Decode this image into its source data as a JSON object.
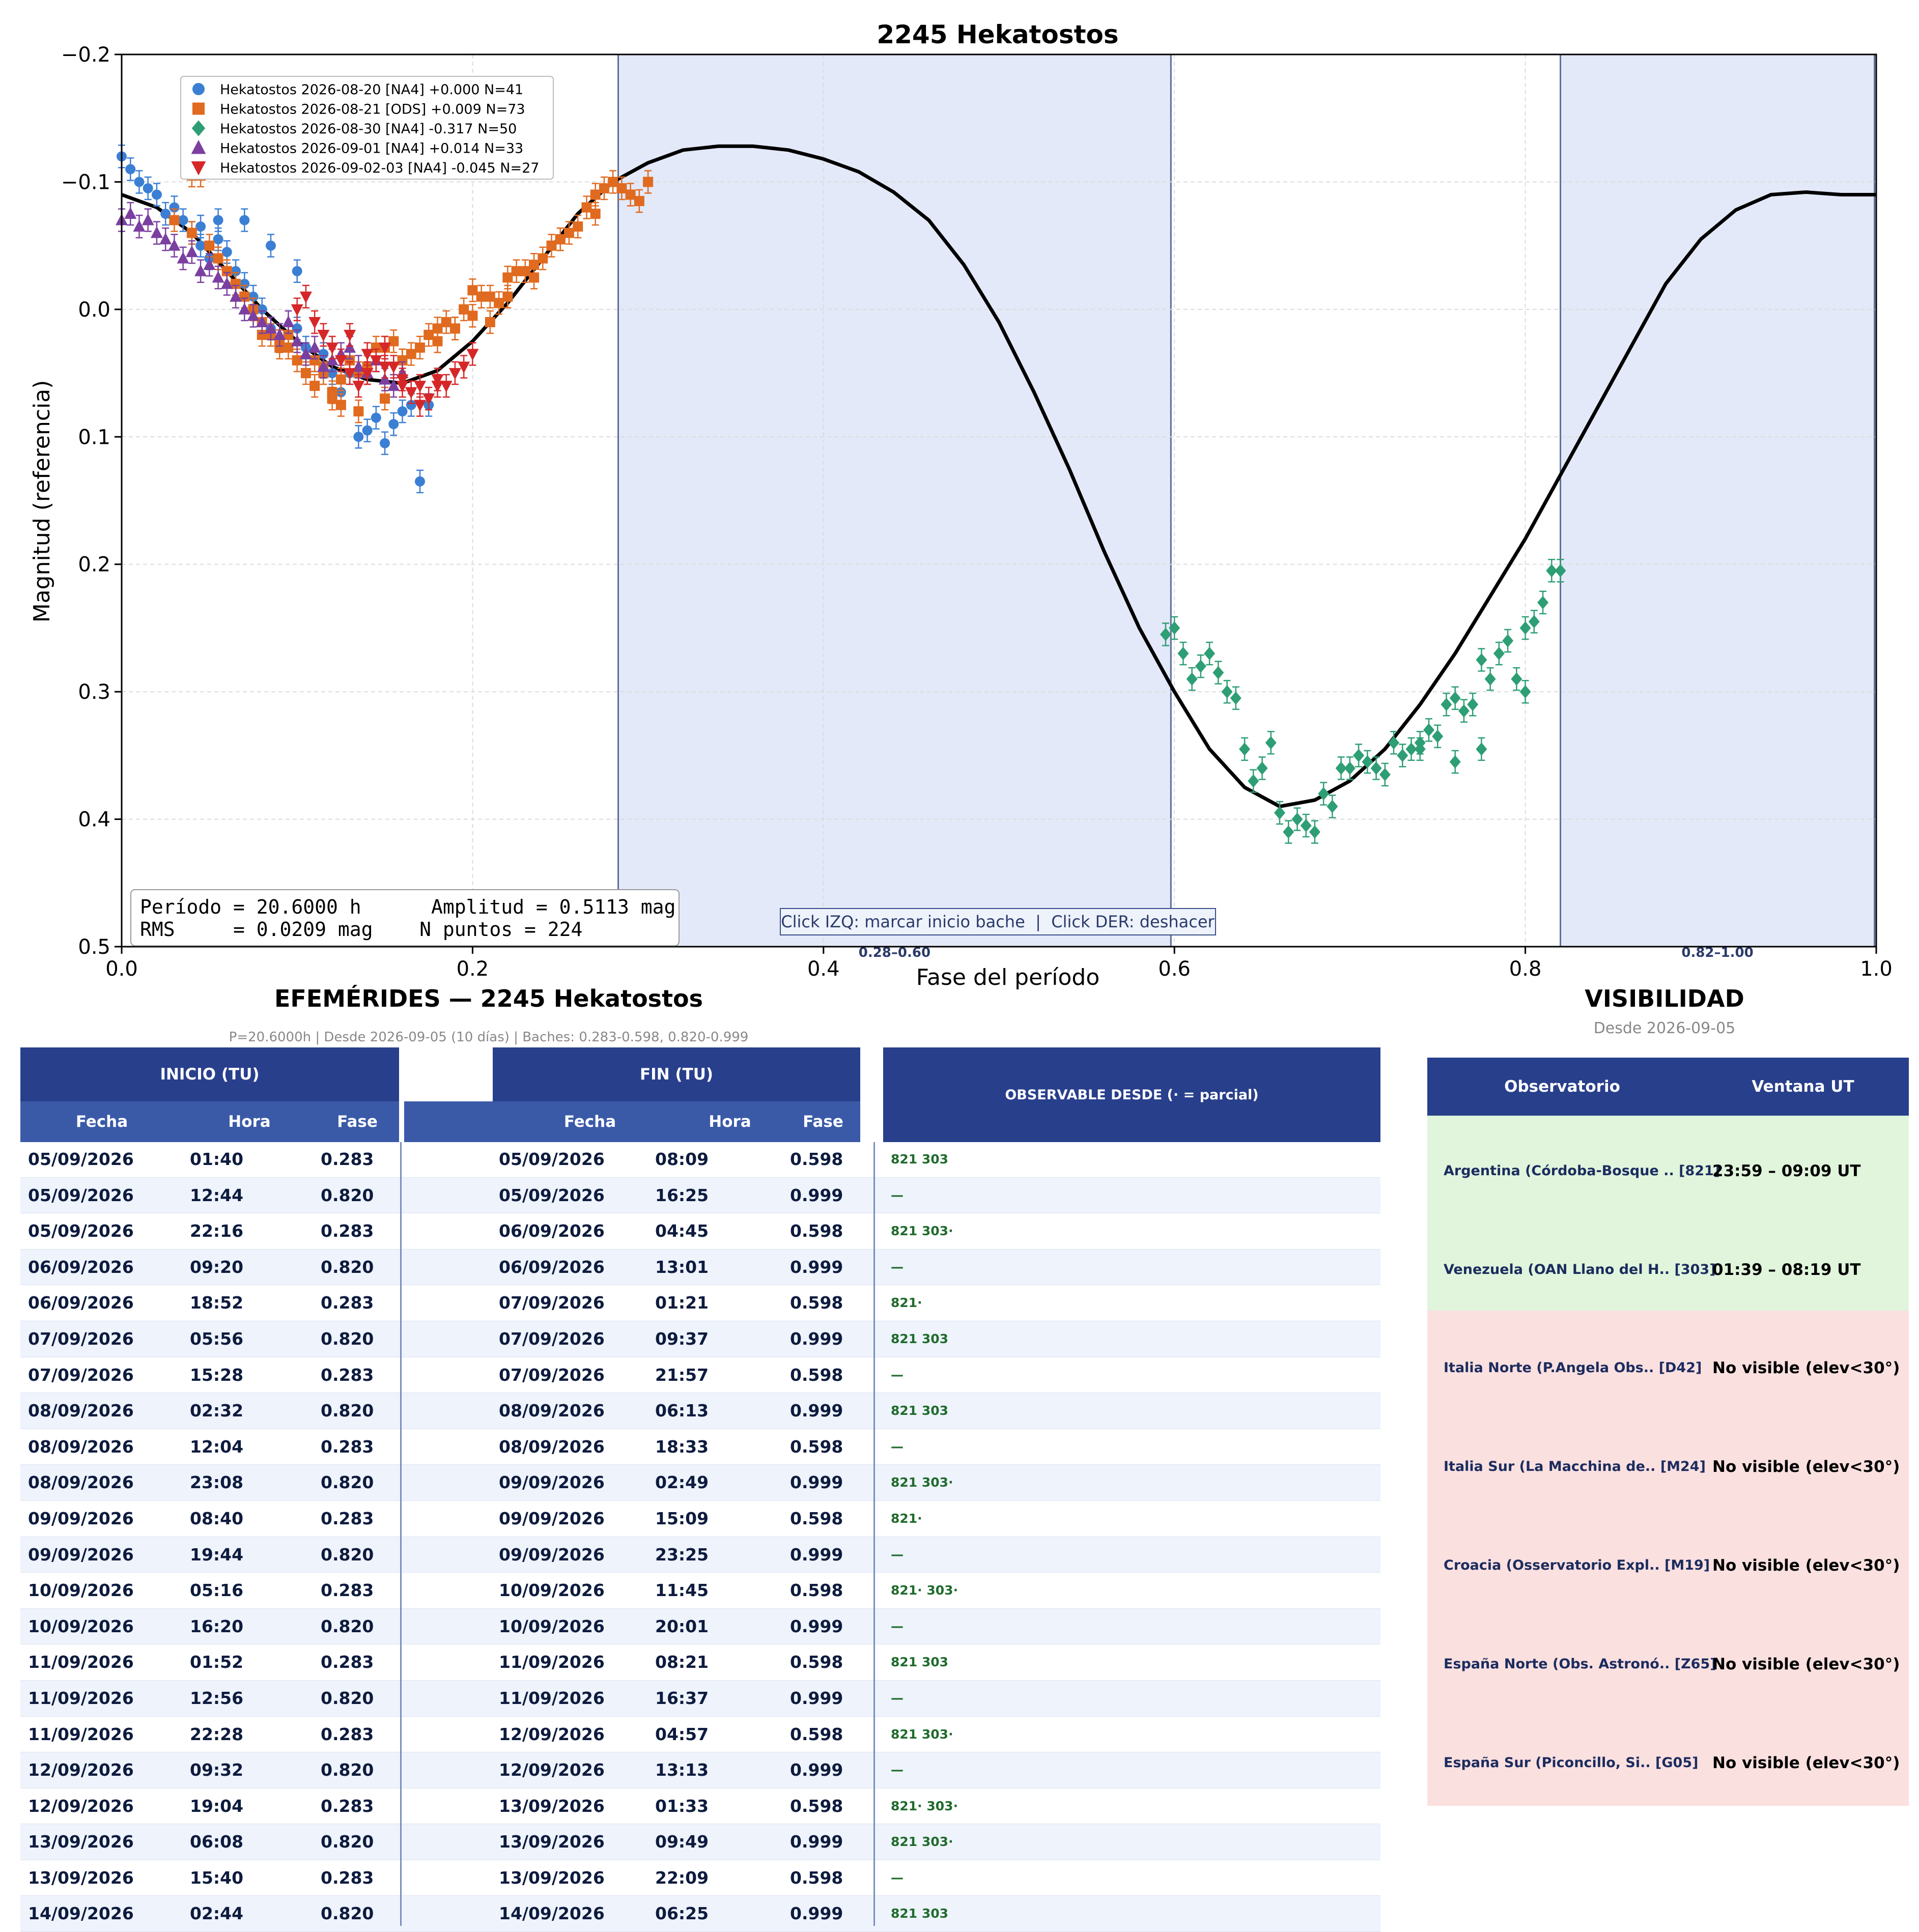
{
  "chart_data": {
    "type": "scatter",
    "title": "2245 Hekatostos",
    "xlabel": "Fase del período",
    "ylabel": "Magnitud (referencia)",
    "xlim": [
      0.0,
      1.0
    ],
    "ylim": [
      0.5,
      -0.2
    ],
    "y_inverted": true,
    "grid": true,
    "legend_position": "top-left",
    "x_ticks": [
      "0.0",
      "0.2",
      "0.4",
      "0.6",
      "0.8",
      "1.0"
    ],
    "y_ticks": [
      "−0.2",
      "−0.1",
      "0.0",
      "0.1",
      "0.2",
      "0.3",
      "0.4",
      "0.5"
    ],
    "x_tick_values": [
      0.0,
      0.2,
      0.4,
      0.6,
      0.8,
      1.0
    ],
    "y_tick_values": [
      -0.2,
      -0.1,
      0.0,
      0.1,
      0.2,
      0.3,
      0.4,
      0.5
    ],
    "gap_bands": [
      {
        "x0": 0.283,
        "x1": 0.598,
        "label": "0.28–0.60"
      },
      {
        "x0": 0.82,
        "x1": 0.999,
        "label": "0.82–1.00"
      }
    ],
    "fit_curve": {
      "x": [
        0.0,
        0.02,
        0.04,
        0.06,
        0.08,
        0.1,
        0.12,
        0.14,
        0.16,
        0.18,
        0.2,
        0.22,
        0.24,
        0.26,
        0.28,
        0.3,
        0.32,
        0.34,
        0.36,
        0.38,
        0.4,
        0.42,
        0.44,
        0.46,
        0.48,
        0.5,
        0.52,
        0.54,
        0.56,
        0.58,
        0.6,
        0.62,
        0.64,
        0.66,
        0.68,
        0.7,
        0.72,
        0.74,
        0.76,
        0.78,
        0.8,
        0.82,
        0.84,
        0.86,
        0.88,
        0.9,
        0.92,
        0.94,
        0.96,
        0.98,
        1.0
      ],
      "y": [
        -0.09,
        -0.08,
        -0.06,
        -0.03,
        0.0,
        0.025,
        0.045,
        0.055,
        0.058,
        0.048,
        0.025,
        -0.005,
        -0.04,
        -0.075,
        -0.1,
        -0.115,
        -0.125,
        -0.128,
        -0.128,
        -0.125,
        -0.118,
        -0.108,
        -0.092,
        -0.07,
        -0.035,
        0.01,
        0.065,
        0.125,
        0.19,
        0.25,
        0.3,
        0.345,
        0.375,
        0.39,
        0.385,
        0.37,
        0.345,
        0.31,
        0.27,
        0.225,
        0.18,
        0.13,
        0.08,
        0.03,
        -0.02,
        -0.055,
        -0.078,
        -0.09,
        -0.092,
        -0.09,
        -0.09
      ]
    },
    "series": [
      {
        "name": "Hekatostos 2026-08-20 [NA4] +0.000 N=41",
        "color": "#3b7fd4",
        "marker": "circle",
        "x": [
          0.0,
          0.005,
          0.01,
          0.015,
          0.02,
          0.025,
          0.03,
          0.035,
          0.04,
          0.045,
          0.05,
          0.055,
          0.06,
          0.065,
          0.07,
          0.075,
          0.08,
          0.085,
          0.09,
          0.095,
          0.1,
          0.105,
          0.11,
          0.115,
          0.12,
          0.125,
          0.13,
          0.135,
          0.14,
          0.145,
          0.15,
          0.155,
          0.16,
          0.165,
          0.17,
          0.175,
          0.045,
          0.055,
          0.07,
          0.085,
          0.1
        ],
        "y": [
          -0.12,
          -0.11,
          -0.1,
          -0.095,
          -0.09,
          -0.075,
          -0.08,
          -0.07,
          -0.06,
          -0.05,
          -0.04,
          -0.055,
          -0.045,
          -0.03,
          -0.02,
          -0.01,
          0.0,
          0.015,
          0.025,
          0.02,
          0.015,
          0.03,
          0.04,
          0.035,
          0.05,
          0.065,
          0.05,
          0.1,
          0.095,
          0.085,
          0.105,
          0.09,
          0.08,
          0.075,
          0.135,
          0.075,
          -0.065,
          -0.07,
          -0.07,
          -0.05,
          -0.03
        ]
      },
      {
        "name": "Hekatostos 2026-08-21 [ODS] +0.009 N=73",
        "color": "#e06a1f",
        "marker": "square",
        "x": [
          0.03,
          0.04,
          0.05,
          0.055,
          0.06,
          0.065,
          0.07,
          0.075,
          0.08,
          0.085,
          0.09,
          0.095,
          0.1,
          0.105,
          0.11,
          0.115,
          0.12,
          0.125,
          0.13,
          0.135,
          0.14,
          0.145,
          0.15,
          0.155,
          0.16,
          0.165,
          0.17,
          0.175,
          0.18,
          0.185,
          0.19,
          0.195,
          0.2,
          0.205,
          0.21,
          0.215,
          0.22,
          0.225,
          0.23,
          0.235,
          0.24,
          0.245,
          0.25,
          0.255,
          0.26,
          0.265,
          0.27,
          0.275,
          0.28,
          0.285,
          0.29,
          0.295,
          0.3,
          0.04,
          0.045,
          0.08,
          0.09,
          0.095,
          0.11,
          0.115,
          0.12,
          0.125,
          0.135,
          0.15,
          0.16,
          0.18,
          0.19,
          0.2,
          0.21,
          0.22,
          0.235,
          0.25,
          0.27
        ],
        "y": [
          -0.07,
          -0.06,
          -0.05,
          -0.04,
          -0.03,
          -0.02,
          -0.01,
          0.0,
          0.01,
          0.02,
          0.03,
          0.02,
          0.04,
          0.05,
          0.06,
          0.05,
          0.07,
          0.055,
          0.04,
          0.05,
          0.045,
          0.03,
          0.03,
          0.025,
          0.04,
          0.035,
          0.03,
          0.02,
          0.015,
          0.01,
          0.015,
          0.0,
          -0.015,
          -0.01,
          -0.01,
          -0.005,
          -0.025,
          -0.03,
          -0.03,
          -0.035,
          -0.04,
          -0.05,
          -0.055,
          -0.06,
          -0.065,
          -0.08,
          -0.09,
          -0.095,
          -0.1,
          -0.095,
          -0.09,
          -0.085,
          -0.1,
          -0.105,
          -0.105,
          0.02,
          0.025,
          0.03,
          0.04,
          0.045,
          0.065,
          0.075,
          0.08,
          0.07,
          0.04,
          0.025,
          0.015,
          0.005,
          0.01,
          -0.01,
          -0.025,
          -0.055,
          -0.075
        ]
      },
      {
        "name": "Hekatostos 2026-08-30 [NA4] -0.317 N=50",
        "color": "#2e9e74",
        "marker": "diamond",
        "x": [
          0.595,
          0.6,
          0.605,
          0.61,
          0.615,
          0.62,
          0.625,
          0.63,
          0.635,
          0.64,
          0.645,
          0.65,
          0.655,
          0.66,
          0.665,
          0.67,
          0.675,
          0.68,
          0.685,
          0.69,
          0.695,
          0.7,
          0.705,
          0.71,
          0.715,
          0.72,
          0.725,
          0.73,
          0.735,
          0.74,
          0.745,
          0.75,
          0.755,
          0.76,
          0.765,
          0.77,
          0.775,
          0.78,
          0.785,
          0.79,
          0.795,
          0.8,
          0.805,
          0.81,
          0.815,
          0.82,
          0.74,
          0.76,
          0.775,
          0.8
        ],
        "y": [
          0.255,
          0.25,
          0.27,
          0.29,
          0.28,
          0.27,
          0.285,
          0.3,
          0.305,
          0.345,
          0.37,
          0.36,
          0.34,
          0.395,
          0.41,
          0.4,
          0.405,
          0.41,
          0.38,
          0.39,
          0.36,
          0.36,
          0.35,
          0.355,
          0.36,
          0.365,
          0.34,
          0.35,
          0.345,
          0.34,
          0.33,
          0.335,
          0.31,
          0.305,
          0.315,
          0.31,
          0.275,
          0.29,
          0.27,
          0.26,
          0.29,
          0.25,
          0.245,
          0.23,
          0.205,
          0.205,
          0.345,
          0.355,
          0.345,
          0.3
        ]
      },
      {
        "name": "Hekatostos 2026-09-01 [NA4] +0.014 N=33",
        "color": "#7b3fa0",
        "marker": "triangle-up",
        "x": [
          0.0,
          0.005,
          0.01,
          0.015,
          0.02,
          0.025,
          0.03,
          0.035,
          0.04,
          0.045,
          0.05,
          0.055,
          0.06,
          0.065,
          0.07,
          0.075,
          0.08,
          0.085,
          0.09,
          0.095,
          0.1,
          0.105,
          0.11,
          0.115,
          0.12,
          0.125,
          0.13,
          0.135,
          0.14,
          0.145,
          0.15,
          0.155,
          0.16
        ],
        "y": [
          -0.07,
          -0.075,
          -0.065,
          -0.07,
          -0.06,
          -0.055,
          -0.05,
          -0.04,
          -0.045,
          -0.03,
          -0.035,
          -0.025,
          -0.02,
          -0.01,
          0.0,
          0.005,
          0.01,
          0.015,
          0.02,
          0.01,
          0.025,
          0.035,
          0.03,
          0.045,
          0.04,
          0.035,
          0.03,
          0.045,
          0.05,
          0.04,
          0.055,
          0.06,
          0.05
        ]
      },
      {
        "name": "Hekatostos 2026-09-02-03 [NA4] -0.045 N=27",
        "color": "#d62728",
        "marker": "triangle-down",
        "x": [
          0.1,
          0.105,
          0.11,
          0.115,
          0.12,
          0.125,
          0.13,
          0.135,
          0.14,
          0.145,
          0.15,
          0.155,
          0.16,
          0.165,
          0.17,
          0.175,
          0.18,
          0.185,
          0.19,
          0.195,
          0.2,
          0.13,
          0.14,
          0.15,
          0.16,
          0.17,
          0.18
        ],
        "y": [
          0.0,
          -0.01,
          0.01,
          0.02,
          0.03,
          0.04,
          0.05,
          0.06,
          0.05,
          0.04,
          0.03,
          0.045,
          0.055,
          0.065,
          0.06,
          0.07,
          0.055,
          0.06,
          0.05,
          0.045,
          0.035,
          0.02,
          0.035,
          0.045,
          0.06,
          0.075,
          0.06
        ]
      }
    ],
    "stats_box": {
      "line1": "Período = 20.6000 h      Amplitud = 0.5113 mag",
      "line2": "RMS     = 0.0209 mag    N puntos = 224"
    },
    "hint_box": "Click IZQ: marcar inicio bache  |  Click DER: deshacer"
  },
  "ephemerides": {
    "title": "EFEMÉRIDES — 2245 Hekatostos",
    "subtitle": "P=20.6000h  |  Desde 2026-09-05 (10 días)  |  Baches: 0.283-0.598, 0.820-0.999",
    "group_start": "INICIO (TU)",
    "group_end": "FIN (TU)",
    "group_obs": "OBSERVABLE DESDE  (· = parcial)",
    "col_fecha": "Fecha",
    "col_hora": "Hora",
    "col_fase": "Fase",
    "rows": [
      [
        "05/09/2026",
        "01:40",
        "0.283",
        "05/09/2026",
        "08:09",
        "0.598",
        "821 303"
      ],
      [
        "05/09/2026",
        "12:44",
        "0.820",
        "05/09/2026",
        "16:25",
        "0.999",
        "—"
      ],
      [
        "05/09/2026",
        "22:16",
        "0.283",
        "06/09/2026",
        "04:45",
        "0.598",
        "821 303·"
      ],
      [
        "06/09/2026",
        "09:20",
        "0.820",
        "06/09/2026",
        "13:01",
        "0.999",
        "—"
      ],
      [
        "06/09/2026",
        "18:52",
        "0.283",
        "07/09/2026",
        "01:21",
        "0.598",
        "821·"
      ],
      [
        "07/09/2026",
        "05:56",
        "0.820",
        "07/09/2026",
        "09:37",
        "0.999",
        "821 303"
      ],
      [
        "07/09/2026",
        "15:28",
        "0.283",
        "07/09/2026",
        "21:57",
        "0.598",
        "—"
      ],
      [
        "08/09/2026",
        "02:32",
        "0.820",
        "08/09/2026",
        "06:13",
        "0.999",
        "821 303"
      ],
      [
        "08/09/2026",
        "12:04",
        "0.283",
        "08/09/2026",
        "18:33",
        "0.598",
        "—"
      ],
      [
        "08/09/2026",
        "23:08",
        "0.820",
        "09/09/2026",
        "02:49",
        "0.999",
        "821 303·"
      ],
      [
        "09/09/2026",
        "08:40",
        "0.283",
        "09/09/2026",
        "15:09",
        "0.598",
        "821·"
      ],
      [
        "09/09/2026",
        "19:44",
        "0.820",
        "09/09/2026",
        "23:25",
        "0.999",
        "—"
      ],
      [
        "10/09/2026",
        "05:16",
        "0.283",
        "10/09/2026",
        "11:45",
        "0.598",
        "821· 303·"
      ],
      [
        "10/09/2026",
        "16:20",
        "0.820",
        "10/09/2026",
        "20:01",
        "0.999",
        "—"
      ],
      [
        "11/09/2026",
        "01:52",
        "0.283",
        "11/09/2026",
        "08:21",
        "0.598",
        "821 303"
      ],
      [
        "11/09/2026",
        "12:56",
        "0.820",
        "11/09/2026",
        "16:37",
        "0.999",
        "—"
      ],
      [
        "11/09/2026",
        "22:28",
        "0.283",
        "12/09/2026",
        "04:57",
        "0.598",
        "821 303·"
      ],
      [
        "12/09/2026",
        "09:32",
        "0.820",
        "12/09/2026",
        "13:13",
        "0.999",
        "—"
      ],
      [
        "12/09/2026",
        "19:04",
        "0.283",
        "13/09/2026",
        "01:33",
        "0.598",
        "821· 303·"
      ],
      [
        "13/09/2026",
        "06:08",
        "0.820",
        "13/09/2026",
        "09:49",
        "0.999",
        "821 303·"
      ],
      [
        "13/09/2026",
        "15:40",
        "0.283",
        "13/09/2026",
        "22:09",
        "0.598",
        "—"
      ],
      [
        "14/09/2026",
        "02:44",
        "0.820",
        "14/09/2026",
        "06:25",
        "0.999",
        "821 303"
      ]
    ]
  },
  "visibility": {
    "title": "VISIBILIDAD",
    "subtitle": "Desde 2026-09-05",
    "col_obs": "Observatorio",
    "col_window": "Ventana UT",
    "colors": {
      "visible": "#e0f5dc",
      "not_visible": "#fbe0e0"
    },
    "rows": [
      {
        "name": "Argentina (Córdoba-Bosque .. [821]",
        "window": "23:59 – 09:09 UT",
        "visible": true
      },
      {
        "name": "Venezuela (OAN Llano del H.. [303]",
        "window": "01:39 – 08:19 UT",
        "visible": true
      },
      {
        "name": "Italia Norte (P.Angela Obs.. [D42]",
        "window": "No visible (elev<30°)",
        "visible": false
      },
      {
        "name": "Italia Sur (La Macchina de.. [M24]",
        "window": "No visible (elev<30°)",
        "visible": false
      },
      {
        "name": "Croacia (Osservatorio Expl.. [M19]",
        "window": "No visible (elev<30°)",
        "visible": false
      },
      {
        "name": "España Norte (Obs. Astronó.. [Z65]",
        "window": "No visible (elev<30°)",
        "visible": false
      },
      {
        "name": "España Sur (Piconcillo, Si.. [G05]",
        "window": "No visible (elev<30°)",
        "visible": false
      }
    ]
  }
}
